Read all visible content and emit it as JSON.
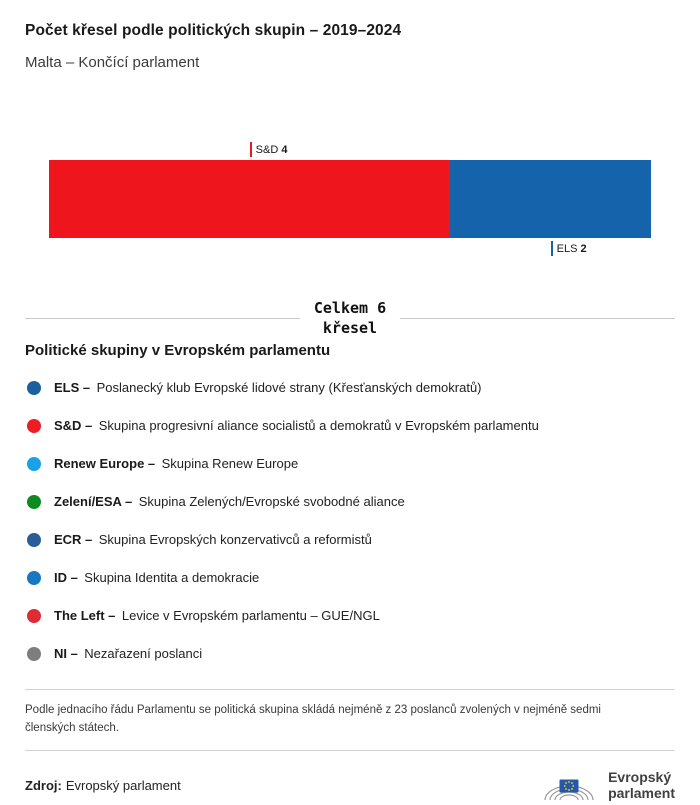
{
  "header": {
    "title": "Počet křesel podle politických skupin – 2019–2024",
    "subtitle": "Malta – Končící parlament"
  },
  "chart_data": {
    "type": "bar",
    "orientation": "horizontal_stacked",
    "title": "Počet křesel podle politických skupin – 2019–2024",
    "subtitle": "Malta – Končící parlament",
    "total": 6,
    "total_label": {
      "line1": "Celkem 6",
      "line2": "křesel"
    },
    "series": [
      {
        "name": "S&D",
        "value": 4,
        "color": "#ee151d",
        "label_position": "top"
      },
      {
        "name": "ELS",
        "value": 2,
        "color": "#1463ab",
        "label_position": "bottom"
      }
    ]
  },
  "legend": {
    "heading": "Politické skupiny v Evropském parlamentu",
    "items": [
      {
        "name": "ELS –",
        "description": "Poslanecký klub Evropské lidové strany (Křesťanských demokratů)",
        "color": "#1b609e"
      },
      {
        "name": "S&D –",
        "description": "Skupina progresivní aliance socialistů a demokratů v Evropském parlamentu",
        "color": "#ee1c25"
      },
      {
        "name": "Renew Europe –",
        "description": "Skupina Renew Europe",
        "color": "#18a0e8"
      },
      {
        "name": "Zelení/ESA –",
        "description": "Skupina Zelených/Evropské svobodné aliance",
        "color": "#0d8a20"
      },
      {
        "name": "ECR –",
        "description": "Skupina Evropských konzervativců a reformistů",
        "color": "#2b5e97"
      },
      {
        "name": "ID –",
        "description": "Skupina Identita a demokracie",
        "color": "#1778c2"
      },
      {
        "name": "The Left –",
        "description": "Levice v Evropském parlamentu – GUE/NGL",
        "color": "#df2b36"
      },
      {
        "name": "NI –",
        "description": "Nezařazení poslanci",
        "color": "#7d7d7d"
      }
    ]
  },
  "footnote": "Podle jednacího řádu Parlamentu se politická skupina skládá nejméně z 23 poslanců zvolených v nejméně sedmi členských státech.",
  "source": {
    "label": "Zdroj:",
    "text": "Evropský parlament"
  },
  "logo": {
    "line1": "Evropský",
    "line2": "parlament"
  }
}
